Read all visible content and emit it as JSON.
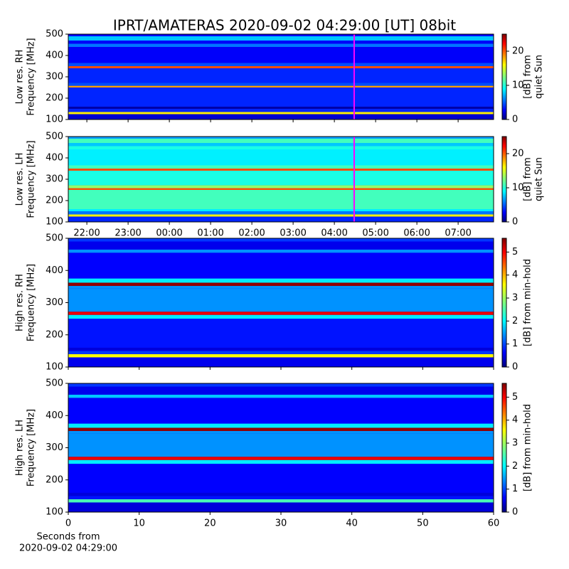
{
  "title": "IPRT/AMATERAS 2020-09-02 04:29:00 [UT]   08bit",
  "chart_data": [
    {
      "type": "heatmap",
      "ylabel": [
        "Low res. RH",
        "Frequency [MHz]"
      ],
      "ylim": [
        100,
        500
      ],
      "yticks": [
        100,
        200,
        300,
        400,
        500
      ],
      "y_edges": [
        100,
        125,
        135,
        150,
        160,
        250,
        258,
        272,
        340,
        350,
        365,
        440,
        455,
        470,
        490,
        500
      ],
      "values": [
        2,
        16,
        4,
        1,
        4,
        18,
        5,
        4,
        20,
        5,
        3,
        6,
        3,
        8,
        3
      ],
      "xlim": [
        21.55,
        31.86
      ],
      "xticks": [
        {
          "value": 22,
          "label": "22:00"
        },
        {
          "value": 23,
          "label": "23:00"
        },
        {
          "value": 24,
          "label": "00:00"
        },
        {
          "value": 25,
          "label": "01:00"
        },
        {
          "value": 26,
          "label": "02:00"
        },
        {
          "value": 27,
          "label": "03:00"
        },
        {
          "value": 28,
          "label": "04:00"
        },
        {
          "value": 29,
          "label": "05:00"
        },
        {
          "value": 30,
          "label": "06:00"
        },
        {
          "value": 31,
          "label": "07:00"
        }
      ],
      "xtick_labels": false,
      "marker": 28.48,
      "marker_color": "#ff00ff",
      "clim": [
        0,
        25
      ],
      "cticks": [
        0,
        10,
        20
      ],
      "clabel": [
        "[dB] from",
        "quiet Sun"
      ]
    },
    {
      "type": "heatmap",
      "ylabel": [
        "Low res. LH",
        "Frequency [MHz]"
      ],
      "ylim": [
        100,
        500
      ],
      "yticks": [
        100,
        200,
        300,
        400,
        500
      ],
      "y_edges": [
        100,
        125,
        135,
        150,
        160,
        250,
        258,
        272,
        340,
        350,
        365,
        440,
        455,
        470,
        490,
        500
      ],
      "values": [
        4,
        16,
        6,
        9,
        11,
        20,
        13,
        10,
        20,
        11,
        9,
        10,
        8,
        11,
        7
      ],
      "xlim": [
        21.55,
        31.86
      ],
      "xticks": [
        {
          "value": 22,
          "label": "22:00"
        },
        {
          "value": 23,
          "label": "23:00"
        },
        {
          "value": 24,
          "label": "00:00"
        },
        {
          "value": 25,
          "label": "01:00"
        },
        {
          "value": 26,
          "label": "02:00"
        },
        {
          "value": 27,
          "label": "03:00"
        },
        {
          "value": 28,
          "label": "04:00"
        },
        {
          "value": 29,
          "label": "05:00"
        },
        {
          "value": 30,
          "label": "06:00"
        },
        {
          "value": 31,
          "label": "07:00"
        }
      ],
      "xtick_labels": true,
      "marker": 28.48,
      "marker_color": "#ff00ff",
      "clim": [
        0,
        25
      ],
      "cticks": [
        0,
        10,
        20
      ],
      "clabel": [
        "[dB] from",
        "quiet Sun"
      ]
    },
    {
      "type": "heatmap",
      "ylabel": [
        "High res. RH",
        "Frequency [MHz]"
      ],
      "ylim": [
        100,
        500
      ],
      "yticks": [
        100,
        200,
        300,
        400,
        500
      ],
      "y_edges": [
        100,
        130,
        140,
        150,
        160,
        250,
        262,
        272,
        345,
        352,
        362,
        375,
        455,
        465,
        490,
        500
      ],
      "values": [
        0.6,
        3.5,
        1,
        0.5,
        0.8,
        2,
        5,
        1.5,
        1.5,
        5.5,
        2,
        0.7,
        1.5,
        0.6,
        1
      ],
      "xlim": [
        0,
        60
      ],
      "xticks": [
        0,
        10,
        20,
        30,
        40,
        50,
        60
      ],
      "xtick_labels": false,
      "clim": [
        0,
        5.6
      ],
      "cticks": [
        0,
        1,
        2,
        3,
        4,
        5
      ],
      "clabel": [
        "[dB] from min-hold"
      ]
    },
    {
      "type": "heatmap",
      "ylabel": [
        "High res. LH",
        "Frequency [MHz]"
      ],
      "ylim": [
        100,
        500
      ],
      "yticks": [
        100,
        200,
        300,
        400,
        500
      ],
      "y_edges": [
        100,
        130,
        140,
        150,
        160,
        250,
        262,
        272,
        345,
        352,
        362,
        375,
        455,
        465,
        490,
        500
      ],
      "values": [
        0.5,
        2.5,
        0.8,
        0.5,
        0.7,
        2,
        5,
        1.5,
        1.5,
        5.5,
        2,
        0.7,
        1.8,
        0.6,
        1
      ],
      "xlim": [
        0,
        60
      ],
      "xticks": [
        0,
        10,
        20,
        30,
        40,
        50,
        60
      ],
      "xtick_labels": true,
      "xlabel": [
        "Seconds from",
        "2020-09-02 04:29:00"
      ],
      "clim": [
        0,
        5.6
      ],
      "cticks": [
        0,
        1,
        2,
        3,
        4,
        5
      ],
      "clabel": [
        "[dB] from min-hold"
      ]
    }
  ]
}
